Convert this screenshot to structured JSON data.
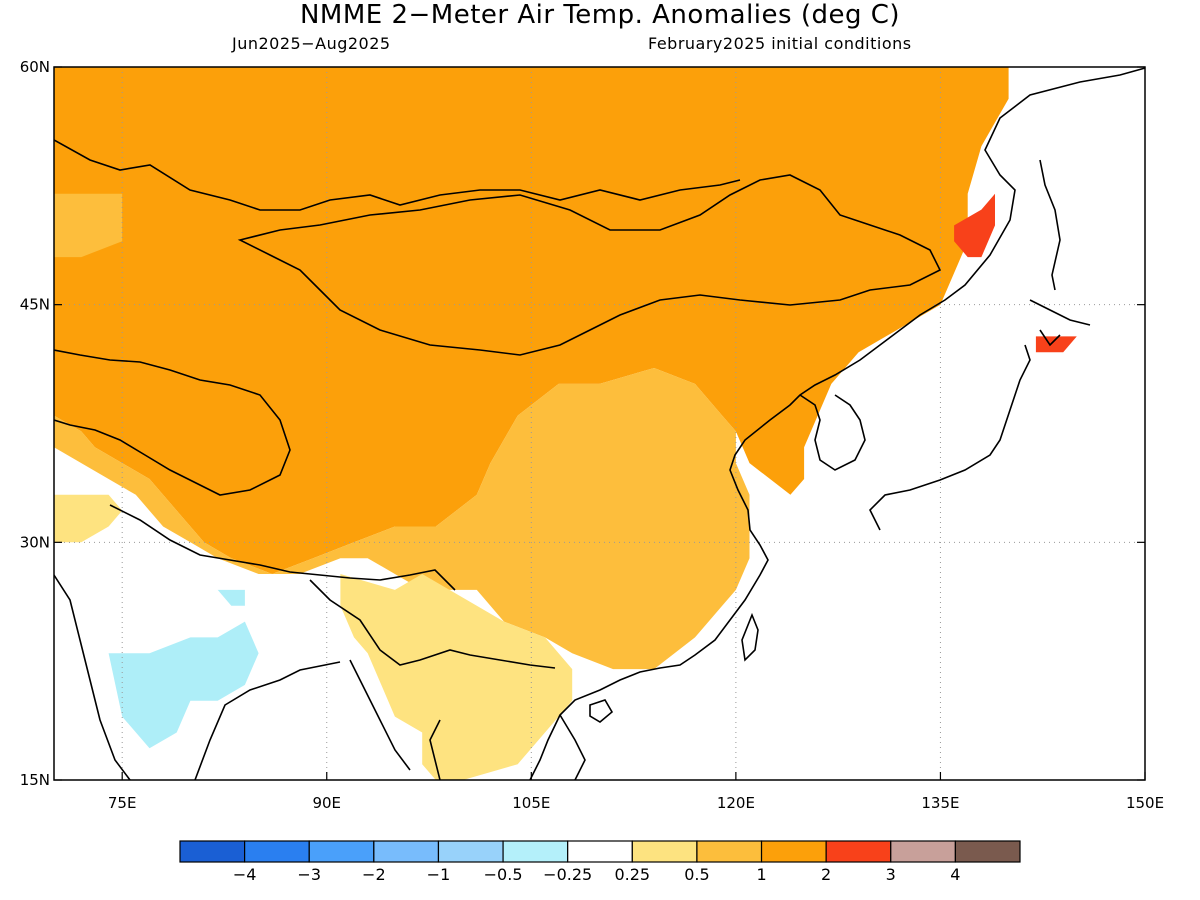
{
  "title": "NMME 2−Meter Air Temp. Anomalies (deg C)",
  "subtitle_left": "Jun2025−Aug2025",
  "subtitle_right": "February2025 initial conditions",
  "map": {
    "lon_range": [
      70,
      150
    ],
    "lat_range": [
      15,
      60
    ],
    "lat_ticks": [
      {
        "value": 60,
        "label": "60N"
      },
      {
        "value": 45,
        "label": "45N"
      },
      {
        "value": 30,
        "label": "30N"
      },
      {
        "value": 15,
        "label": "15N"
      }
    ],
    "lon_ticks": [
      {
        "value": 75,
        "label": "75E"
      },
      {
        "value": 90,
        "label": "90E"
      },
      {
        "value": 105,
        "label": "105E"
      },
      {
        "value": 120,
        "label": "120E"
      },
      {
        "value": 135,
        "label": "135E"
      },
      {
        "value": 150,
        "label": "150E"
      }
    ],
    "grid": "dotted",
    "regions": [
      {
        "category": "1 to 2",
        "color": "#fca00a",
        "polygon": [
          [
            70,
            60
          ],
          [
            140,
            60
          ],
          [
            140,
            58
          ],
          [
            138,
            55
          ],
          [
            137,
            52
          ],
          [
            137,
            49
          ],
          [
            136,
            47
          ],
          [
            135,
            45
          ],
          [
            133,
            44
          ],
          [
            131,
            43
          ],
          [
            129,
            42
          ],
          [
            127,
            40
          ],
          [
            126,
            38
          ],
          [
            125,
            36
          ],
          [
            125,
            34
          ],
          [
            124,
            33
          ],
          [
            121,
            35
          ],
          [
            120,
            37
          ],
          [
            119,
            38
          ],
          [
            117,
            40
          ],
          [
            114,
            41
          ],
          [
            110,
            40
          ],
          [
            107,
            40
          ],
          [
            104,
            38
          ],
          [
            102,
            35
          ],
          [
            101,
            33
          ],
          [
            98,
            31
          ],
          [
            95,
            31
          ],
          [
            92,
            30
          ],
          [
            89,
            29
          ],
          [
            86,
            28
          ],
          [
            83,
            29
          ],
          [
            81,
            30
          ],
          [
            79,
            32
          ],
          [
            77,
            34
          ],
          [
            75,
            35
          ],
          [
            73,
            36
          ],
          [
            72,
            37
          ],
          [
            70,
            38
          ]
        ]
      },
      {
        "category": "0.5 to 1",
        "color": "#fdbe3c",
        "polygon": [
          [
            104,
            38
          ],
          [
            107,
            40
          ],
          [
            110,
            40
          ],
          [
            114,
            41
          ],
          [
            117,
            40
          ],
          [
            119,
            38
          ],
          [
            120,
            37
          ],
          [
            120,
            35
          ],
          [
            121,
            33
          ],
          [
            121,
            31
          ],
          [
            121,
            29
          ],
          [
            120,
            27
          ],
          [
            119,
            26
          ],
          [
            117,
            24
          ],
          [
            114,
            22
          ],
          [
            111,
            22
          ],
          [
            108,
            23
          ],
          [
            106,
            24
          ],
          [
            103,
            25
          ],
          [
            101,
            27
          ],
          [
            99,
            27
          ],
          [
            97,
            27
          ],
          [
            95,
            28
          ],
          [
            93,
            29
          ],
          [
            91,
            29
          ],
          [
            88,
            28
          ],
          [
            85,
            28
          ],
          [
            82,
            29
          ],
          [
            80,
            30
          ],
          [
            78,
            31
          ],
          [
            76,
            33
          ],
          [
            74,
            34
          ],
          [
            72,
            35
          ],
          [
            70,
            36
          ],
          [
            70,
            38
          ],
          [
            72,
            37
          ],
          [
            73,
            36
          ],
          [
            75,
            35
          ],
          [
            77,
            34
          ],
          [
            79,
            32
          ],
          [
            81,
            30
          ],
          [
            83,
            29
          ],
          [
            86,
            28
          ],
          [
            89,
            29
          ],
          [
            92,
            30
          ],
          [
            95,
            31
          ],
          [
            98,
            31
          ],
          [
            101,
            33
          ],
          [
            102,
            35
          ]
        ]
      },
      {
        "category": "0.5 to 1",
        "color": "#fdbe3c",
        "polygon": [
          [
            70,
            52
          ],
          [
            72,
            52
          ],
          [
            75,
            52
          ],
          [
            75,
            49
          ],
          [
            72,
            48
          ],
          [
            70,
            48
          ]
        ]
      },
      {
        "category": "0.25 to 0.5",
        "color": "#fee380",
        "polygon": [
          [
            91,
            28
          ],
          [
            95,
            27
          ],
          [
            97,
            28
          ],
          [
            99,
            27
          ],
          [
            101,
            26
          ],
          [
            103,
            25
          ],
          [
            106,
            24
          ],
          [
            108,
            22
          ],
          [
            108,
            20
          ],
          [
            106,
            18
          ],
          [
            104,
            16
          ],
          [
            100,
            15
          ],
          [
            98,
            15
          ],
          [
            97,
            16
          ],
          [
            97,
            18
          ],
          [
            95,
            19
          ],
          [
            94,
            21
          ],
          [
            93,
            23
          ],
          [
            92,
            24
          ],
          [
            91,
            26
          ]
        ]
      },
      {
        "category": "0.25 to 0.5",
        "color": "#fee380",
        "polygon": [
          [
            70,
            33
          ],
          [
            72,
            33
          ],
          [
            74,
            33
          ],
          [
            75,
            32
          ],
          [
            74,
            31
          ],
          [
            72,
            30
          ],
          [
            70,
            30
          ]
        ]
      },
      {
        "category": "-0.5 to -0.25",
        "color": "#aeeef8",
        "polygon": [
          [
            74,
            23
          ],
          [
            77,
            23
          ],
          [
            80,
            24
          ],
          [
            82,
            24
          ],
          [
            84,
            25
          ],
          [
            85,
            23
          ],
          [
            84,
            21
          ],
          [
            82,
            20
          ],
          [
            80,
            20
          ],
          [
            79,
            18
          ],
          [
            77,
            17
          ],
          [
            75,
            19
          ]
        ]
      },
      {
        "category": "-0.5 to -0.25",
        "color": "#aeeef8",
        "polygon": [
          [
            82,
            27
          ],
          [
            84,
            27
          ],
          [
            84,
            26
          ],
          [
            83,
            26
          ]
        ]
      },
      {
        "category": "2 to 3",
        "color": "#f8411a",
        "polygon": [
          [
            136,
            50
          ],
          [
            138,
            51
          ],
          [
            139,
            52
          ],
          [
            139,
            50
          ],
          [
            138,
            48
          ],
          [
            137,
            48
          ],
          [
            136,
            49
          ]
        ]
      },
      {
        "category": "2 to 3",
        "color": "#f8411a",
        "polygon": [
          [
            142,
            43
          ],
          [
            144,
            43
          ],
          [
            145,
            43
          ],
          [
            144,
            42
          ],
          [
            142,
            42
          ]
        ]
      }
    ],
    "coastline_note": "land/sea outlines"
  },
  "colorbar": {
    "bins": [
      {
        "color": "#1a5fd4"
      },
      {
        "color": "#2a7ff0"
      },
      {
        "color": "#4aa0fa"
      },
      {
        "color": "#78bcfc"
      },
      {
        "color": "#98d2fa"
      },
      {
        "color": "#b4f0fa"
      },
      {
        "color": "#ffffff"
      },
      {
        "color": "#fde380"
      },
      {
        "color": "#fcbe3c"
      },
      {
        "color": "#fca00a"
      },
      {
        "color": "#f8411a"
      },
      {
        "color": "#c8a09a"
      },
      {
        "color": "#7a5a4e"
      }
    ],
    "labels": [
      "−4",
      "−3",
      "−2",
      "−1",
      "−0.5",
      "−0.25",
      "0.25",
      "0.5",
      "1",
      "2",
      "3",
      "4"
    ]
  }
}
